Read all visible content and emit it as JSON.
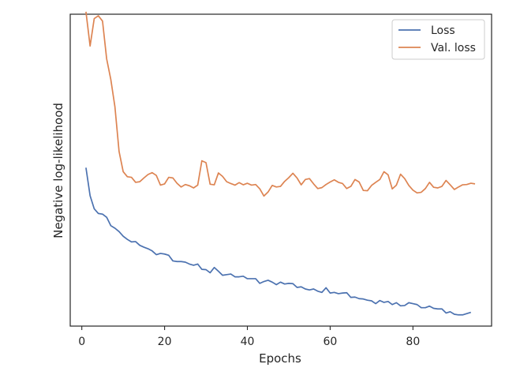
{
  "chart_data": {
    "type": "line",
    "xlabel": "Epochs",
    "ylabel": "Negative log-likelihood",
    "xlim": [
      -2.8,
      99.0
    ],
    "ylim": [
      0,
      1
    ],
    "y_tick_labels_shown": false,
    "grid": false,
    "legend_position": "top-right",
    "x_ticks": [
      {
        "value": 0,
        "label": "0"
      },
      {
        "value": 20,
        "label": "20"
      },
      {
        "value": 40,
        "label": "40"
      },
      {
        "value": 60,
        "label": "60"
      },
      {
        "value": 80,
        "label": "80"
      }
    ],
    "series": [
      {
        "name": "Loss",
        "color": "#4c72b0",
        "x_start": 1,
        "values": [
          0.508,
          0.418,
          0.376,
          0.361,
          0.359,
          0.349,
          0.322,
          0.314,
          0.303,
          0.288,
          0.278,
          0.27,
          0.271,
          0.259,
          0.253,
          0.248,
          0.241,
          0.229,
          0.233,
          0.231,
          0.227,
          0.209,
          0.207,
          0.207,
          0.205,
          0.199,
          0.195,
          0.199,
          0.182,
          0.181,
          0.171,
          0.188,
          0.176,
          0.163,
          0.165,
          0.167,
          0.158,
          0.158,
          0.16,
          0.152,
          0.152,
          0.152,
          0.137,
          0.143,
          0.147,
          0.141,
          0.133,
          0.141,
          0.135,
          0.137,
          0.136,
          0.124,
          0.126,
          0.119,
          0.116,
          0.119,
          0.112,
          0.108,
          0.123,
          0.106,
          0.108,
          0.104,
          0.106,
          0.107,
          0.092,
          0.093,
          0.088,
          0.087,
          0.083,
          0.081,
          0.072,
          0.082,
          0.076,
          0.079,
          0.069,
          0.075,
          0.065,
          0.066,
          0.075,
          0.072,
          0.069,
          0.059,
          0.059,
          0.064,
          0.057,
          0.055,
          0.055,
          0.042,
          0.046,
          0.038,
          0.036,
          0.036,
          0.04,
          0.044
        ]
      },
      {
        "name": "Val. loss",
        "color": "#dd8452",
        "x_start": 1,
        "values": [
          1.008,
          0.898,
          0.986,
          0.995,
          0.978,
          0.857,
          0.791,
          0.703,
          0.56,
          0.495,
          0.479,
          0.477,
          0.461,
          0.463,
          0.475,
          0.486,
          0.492,
          0.483,
          0.452,
          0.456,
          0.477,
          0.475,
          0.458,
          0.446,
          0.454,
          0.45,
          0.443,
          0.452,
          0.53,
          0.524,
          0.455,
          0.453,
          0.491,
          0.48,
          0.463,
          0.457,
          0.452,
          0.46,
          0.453,
          0.458,
          0.452,
          0.454,
          0.44,
          0.417,
          0.43,
          0.451,
          0.446,
          0.448,
          0.464,
          0.476,
          0.49,
          0.475,
          0.453,
          0.47,
          0.473,
          0.456,
          0.441,
          0.444,
          0.454,
          0.462,
          0.469,
          0.461,
          0.457,
          0.441,
          0.448,
          0.47,
          0.462,
          0.435,
          0.434,
          0.451,
          0.461,
          0.47,
          0.495,
          0.485,
          0.44,
          0.452,
          0.487,
          0.473,
          0.451,
          0.436,
          0.427,
          0.429,
          0.441,
          0.461,
          0.445,
          0.443,
          0.448,
          0.467,
          0.453,
          0.438,
          0.446,
          0.453,
          0.454,
          0.458,
          0.456
        ]
      }
    ]
  }
}
